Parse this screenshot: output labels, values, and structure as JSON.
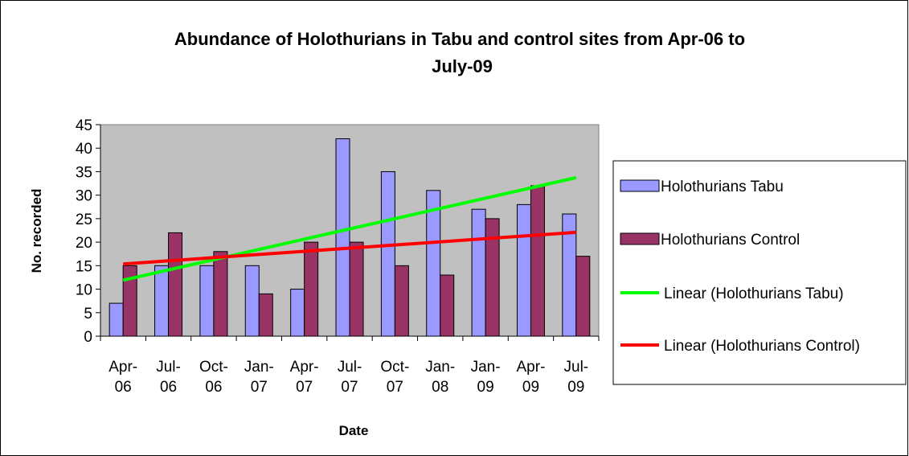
{
  "chart_data": {
    "type": "bar",
    "title": "Abundance of Holothurians in Tabu and control sites from Apr-06 to July-09",
    "x_label": "Date",
    "y_label": "No. recorded",
    "categories": [
      "Apr-06",
      "Jul-06",
      "Oct-06",
      "Jan-07",
      "Apr-07",
      "Jul-07",
      "Oct-07",
      "Jan-08",
      "Jan-09",
      "Apr-09",
      "Jul-09"
    ],
    "series": [
      {
        "name": "Holothurians Tabu",
        "color": "#9999ff",
        "values": [
          7,
          15,
          15,
          15,
          10,
          42,
          35,
          31,
          27,
          28,
          26
        ]
      },
      {
        "name": "Holothurians Control",
        "color": "#993366",
        "values": [
          15,
          22,
          18,
          9,
          20,
          20,
          15,
          13,
          25,
          32,
          17
        ]
      }
    ],
    "trendlines": [
      {
        "name": "Linear (Holothurians Tabu)",
        "color": "#00ff00",
        "series": 0
      },
      {
        "name": "Linear (Holothurians Control)",
        "color": "#ff0000",
        "series": 1
      }
    ],
    "ylim": [
      0,
      45
    ],
    "yticks": [
      0,
      5,
      10,
      15,
      20,
      25,
      30,
      35,
      40,
      45
    ],
    "legend": "right"
  }
}
